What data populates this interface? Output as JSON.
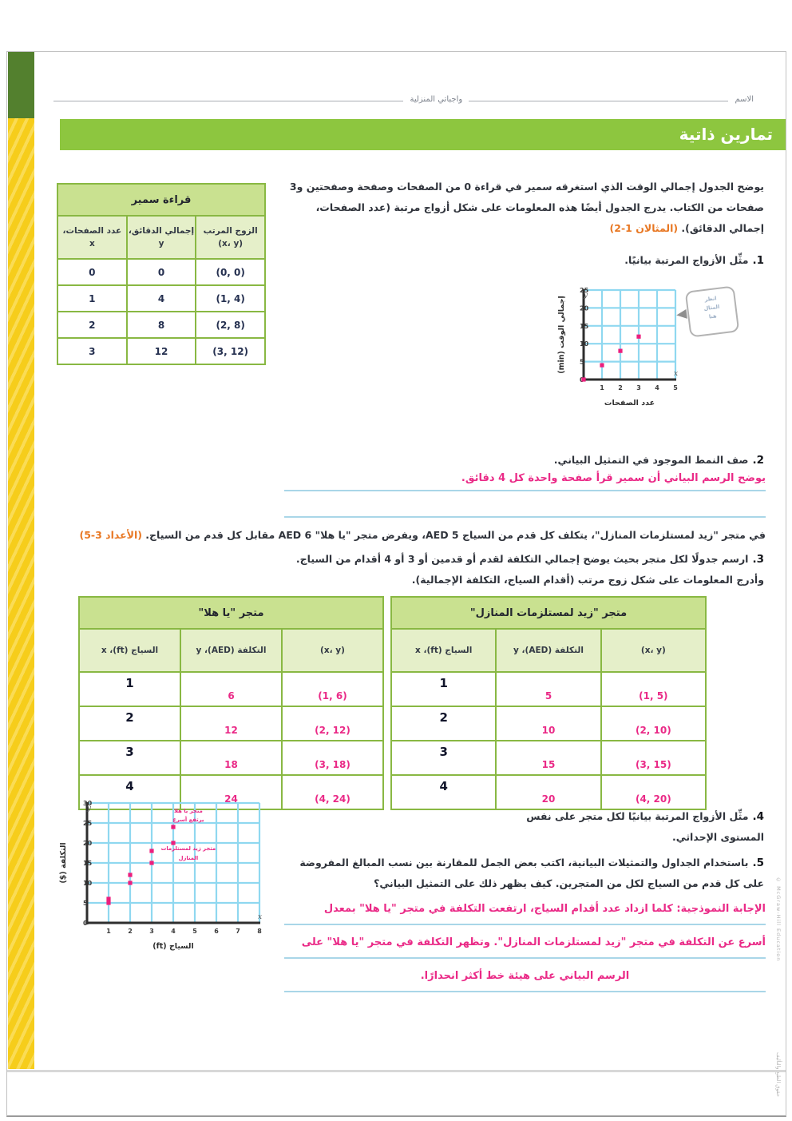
{
  "colors": {
    "banner_green": "#8dc63f",
    "table_border_green": "#89b843",
    "table_title_bg": "#c9e190",
    "table_header_bg": "#e5efc9",
    "answer_pink": "#ea2a87",
    "answer_line_blue": "#a9d6e8",
    "ref_orange": "#e87722",
    "grid_blue": "#8fd8f0",
    "band_yellow": "#f6cd1b",
    "band_green": "#53802e"
  },
  "header": {
    "name_label": "الاسم",
    "center_label": "واجباتي المنزلية"
  },
  "banner_title": "تمارين ذاتية",
  "intro": {
    "text": "يوضح الجدول إجمالي الوقت الذي استغرقه سمير في قراءة 0 من الصفحات وصفحة وصفحتين و3 صفحات من الكتاب. يدرج الجدول أيضًا هذه المعلومات على شكل أزواج مرتبة (عدد الصفحات، إجمالي الدقائق). ",
    "ref": "(المثالان 1-2)"
  },
  "section3": {
    "text": "في متجر \"زيد لمستلزمات المنازل\"، يتكلف كل قدم من السياج AED 5، ويفرض متجر \"يا هلا\" AED 6 مقابل كل قدم من السياج. ",
    "ref": "(الأعداد 3-5)"
  },
  "questions": {
    "q1": {
      "num": "1.",
      "text": "مثِّل الأزواج المرتبة بيانيًا."
    },
    "q2": {
      "num": "2.",
      "text": "صف النمط الموجود في التمثيل البياني.",
      "answer": "يوضح الرسم البياني أن سمير قرأ صفحة واحدة كل 4 دقائق."
    },
    "q3": {
      "num": "3.",
      "text": "ارسم جدولًا لكل متجر بحيث يوضح إجمالي التكلفة لقدم أو قدمين أو 3 أو 4 أقدام من السياج. وأدرج المعلومات على شكل زوج مرتب (أقدام السياج، التكلفة الإجمالية)."
    },
    "q4": {
      "num": "4.",
      "text": "مثِّل الأزواج المرتبة بيانيًا لكل متجر على نفس المستوى الإحداثي."
    },
    "q5": {
      "num": "5.",
      "text": "باستخدام الجداول والتمثيلات البيانية، اكتب بعض الجمل للمقارنة بين نسب المبالغ المفروضة على كل قدم من السياج لكل من المتجرين. كيف يظهر ذلك على التمثيل البياني؟",
      "answer_lines": [
        "الإجابة النموذجية: كلما ازداد عدد أقدام السياج، ارتفعت التكلفة في متجر \"يا هلا\" بمعدل",
        "أسرع عن التكلفة في متجر \"زيد لمستلزمات المنازل\". وتظهر التكلفة في متجر \"يا هلا\" على",
        "الرسم البياني على هيئة خط أكثر انحدارًا."
      ]
    }
  },
  "tables": {
    "sameer": {
      "title": "قراءة سمير",
      "headers": {
        "pair": "الزوج المرتب (x، y)",
        "minutes": "إجمالي الدقائق، y",
        "pages": "عدد الصفحات، x"
      },
      "rows": [
        {
          "pages": "0",
          "minutes": "0",
          "pair": "(0, 0)"
        },
        {
          "pages": "1",
          "minutes": "4",
          "pair": "(1, 4)"
        },
        {
          "pages": "2",
          "minutes": "8",
          "pair": "(2, 8)"
        },
        {
          "pages": "3",
          "minutes": "12",
          "pair": "(3, 12)"
        }
      ]
    },
    "zayed": {
      "title": "متجر \"زيد لمستلزمات المنازل\"",
      "headers": {
        "pair": "(x، y)",
        "cost": "التكلفة (AED)، y",
        "feet": "السياج (ft)، x"
      },
      "rows": [
        {
          "feet": "1",
          "cost": "5",
          "pair": "(1, 5)"
        },
        {
          "feet": "2",
          "cost": "10",
          "pair": "(2, 10)"
        },
        {
          "feet": "3",
          "cost": "15",
          "pair": "(3, 15)"
        },
        {
          "feet": "4",
          "cost": "20",
          "pair": "(4, 20)"
        }
      ]
    },
    "yahala": {
      "title": "متجر \"يا هلا\"",
      "headers": {
        "pair": "(x، y)",
        "cost": "التكلفة (AED)، y",
        "feet": "السياج (ft)، x"
      },
      "rows": [
        {
          "feet": "1",
          "cost": "6",
          "pair": "(1, 6)"
        },
        {
          "feet": "2",
          "cost": "12",
          "pair": "(2, 12)"
        },
        {
          "feet": "3",
          "cost": "18",
          "pair": "(3, 18)"
        },
        {
          "feet": "4",
          "cost": "24",
          "pair": "(4, 24)"
        }
      ]
    }
  },
  "stamp": {
    "lines": [
      "انظر",
      "المثال",
      "هنا"
    ]
  },
  "edge_texts": [
    "McGraw-Hill Education ©",
    "حقوق الطبع والتأليف"
  ],
  "chart_data": [
    {
      "id": "graph1",
      "type": "scatter",
      "points": [
        [
          0,
          0
        ],
        [
          1,
          4
        ],
        [
          2,
          8
        ],
        [
          3,
          12
        ]
      ],
      "xlim": [
        0,
        5
      ],
      "ylim": [
        0,
        25
      ],
      "xstep": 1,
      "ystep": 5,
      "x_ticks": [
        1,
        2,
        3,
        4,
        5
      ],
      "y_ticks": [
        0,
        5,
        10,
        15,
        20,
        25
      ],
      "xlabel": "عدد الصفحات",
      "ylabel": "إجمالي الوقت (min)",
      "axis_letters": {
        "x": "x",
        "y": "y"
      },
      "grid": true,
      "point_color": "#ec1f7d"
    },
    {
      "id": "graph2",
      "type": "scatter",
      "series": [
        {
          "name": "متجر زيد لمستلزمات المنازل",
          "points": [
            [
              1,
              5
            ],
            [
              2,
              10
            ],
            [
              3,
              15
            ],
            [
              4,
              20
            ]
          ]
        },
        {
          "name": "متجر يا هلا",
          "points": [
            [
              1,
              6
            ],
            [
              2,
              12
            ],
            [
              3,
              18
            ],
            [
              4,
              24
            ]
          ]
        }
      ],
      "xlim": [
        0,
        8
      ],
      "ylim": [
        0,
        30
      ],
      "xstep": 1,
      "ystep": 5,
      "x_ticks": [
        1,
        2,
        3,
        4,
        5,
        6,
        7,
        8
      ],
      "y_ticks": [
        0,
        5,
        10,
        15,
        20,
        25,
        30
      ],
      "xlabel": "السياج (ft)",
      "ylabel": "التكلفة ($)",
      "axis_letters": {
        "x": "x",
        "y": "y"
      },
      "grid": true,
      "point_color": "#ec1f7d",
      "annotations": [
        {
          "x": 4.7,
          "y": 27.6,
          "text": "متجر يا هلا"
        },
        {
          "x": 4.7,
          "y": 25.4,
          "text": "يرتفع أسرع"
        },
        {
          "x": 4.7,
          "y": 18.2,
          "text": "متجر زيد لمستلزمات"
        },
        {
          "x": 4.7,
          "y": 15.8,
          "text": "المنازل"
        }
      ]
    }
  ]
}
